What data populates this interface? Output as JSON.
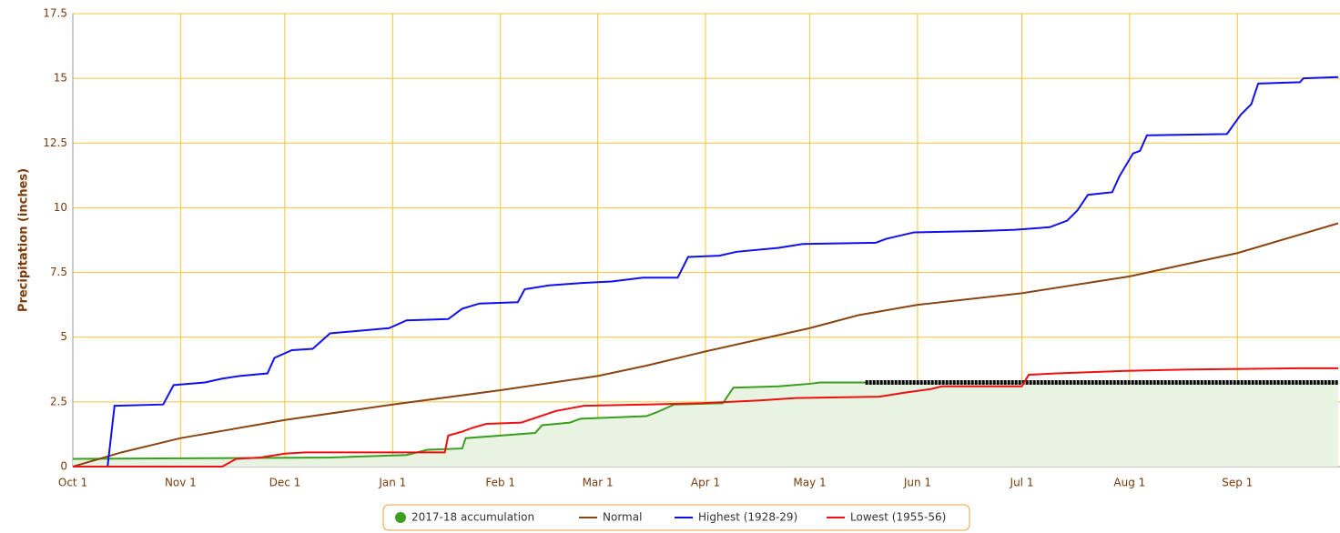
{
  "chart_data": {
    "type": "line",
    "ylabel": "Precipitation (inches)",
    "xlim": [
      "Oct 1",
      "Sep 30"
    ],
    "xticks": [
      "Oct 1",
      "Nov 1",
      "Dec 1",
      "Jan 1",
      "Feb 1",
      "Mar 1",
      "Apr 1",
      "May 1",
      "Jun 1",
      "Jul 1",
      "Aug 1",
      "Sep 1"
    ],
    "ylim": [
      0,
      17.5
    ],
    "yticks": [
      0,
      2.5,
      5,
      7.5,
      10,
      12.5,
      15,
      17.5
    ],
    "grid": true,
    "legend": "bottom",
    "series": [
      {
        "name": "2017-18 accumulation",
        "color": "#3a9e1e",
        "fill": "#e8f3e2",
        "x": [
          "Oct 1",
          "Dec 14",
          "Jan 5",
          "Jan 11",
          "Jan 21",
          "Jan 22",
          "Feb 11",
          "Feb 13",
          "Feb 21",
          "Feb 24",
          "Mar 15",
          "Mar 18",
          "Mar 23",
          "Apr 6",
          "Apr 9",
          "Apr 22",
          "May 1",
          "May 4",
          "May 17",
          "Sep 30"
        ],
        "values": [
          0.3,
          0.35,
          0.45,
          0.65,
          0.7,
          1.1,
          1.3,
          1.6,
          1.7,
          1.85,
          1.95,
          2.1,
          2.4,
          2.45,
          3.05,
          3.1,
          3.2,
          3.25,
          3.25,
          3.25
        ]
      },
      {
        "name": "Normal",
        "color": "#8b4513",
        "x": [
          "Oct 1",
          "Oct 15",
          "Nov 1",
          "Dec 1",
          "Jan 1",
          "Feb 1",
          "Mar 1",
          "Mar 15",
          "Apr 1",
          "May 1",
          "May 15",
          "Jun 1",
          "Jul 1",
          "Aug 1",
          "Sep 1",
          "Sep 30"
        ],
        "values": [
          0,
          0.55,
          1.1,
          1.8,
          2.4,
          2.95,
          3.5,
          3.9,
          4.45,
          5.35,
          5.85,
          6.25,
          6.7,
          7.35,
          8.25,
          9.4
        ]
      },
      {
        "name": "Highest (1928-29)",
        "color": "#1010ee",
        "x": [
          "Oct 1",
          "Oct 11",
          "Oct 13",
          "Oct 27",
          "Oct 30",
          "Nov 8",
          "Nov 13",
          "Nov 18",
          "Nov 26",
          "Nov 28",
          "Dec 3",
          "Dec 9",
          "Dec 14",
          "Dec 31",
          "Jan 5",
          "Jan 17",
          "Jan 21",
          "Jan 26",
          "Feb 6",
          "Feb 8",
          "Feb 15",
          "Feb 25",
          "Mar 5",
          "Mar 14",
          "Mar 24",
          "Mar 27",
          "Apr 5",
          "Apr 10",
          "Apr 22",
          "Apr 29",
          "May 20",
          "May 23",
          "May 31",
          "Jun 19",
          "Jun 29",
          "Jul 9",
          "Jul 14",
          "Jul 17",
          "Jul 20",
          "Jul 27",
          "Jul 29",
          "Aug 2",
          "Aug 4",
          "Aug 6",
          "Aug 29",
          "Sep 2",
          "Sep 5",
          "Sep 7",
          "Sep 19",
          "Sep 20",
          "Sep 30"
        ],
        "values": [
          0,
          0,
          2.35,
          2.4,
          3.15,
          3.25,
          3.4,
          3.5,
          3.6,
          4.2,
          4.5,
          4.55,
          5.15,
          5.35,
          5.65,
          5.7,
          6.1,
          6.3,
          6.35,
          6.85,
          7.0,
          7.1,
          7.15,
          7.3,
          7.3,
          8.1,
          8.15,
          8.3,
          8.45,
          8.6,
          8.65,
          8.8,
          9.05,
          9.1,
          9.15,
          9.25,
          9.5,
          9.9,
          10.5,
          10.6,
          11.2,
          12.1,
          12.2,
          12.8,
          12.85,
          13.6,
          14.0,
          14.8,
          14.85,
          15.0,
          15.05
        ]
      },
      {
        "name": "Lowest (1955-56)",
        "color": "#ee1010",
        "x": [
          "Oct 1",
          "Nov 13",
          "Nov 17",
          "Nov 24",
          "Dec 1",
          "Dec 7",
          "Jan 16",
          "Jan 17",
          "Jan 21",
          "Jan 24",
          "Jan 28",
          "Feb 7",
          "Feb 17",
          "Feb 25",
          "Mar 15",
          "Mar 31",
          "Apr 16",
          "Apr 27",
          "May 21",
          "May 28",
          "Jun 5",
          "Jun 8",
          "Jul 1",
          "Jul 3",
          "Jul 11",
          "Jul 31",
          "Aug 18",
          "Sep 19",
          "Sep 30"
        ],
        "values": [
          0,
          0,
          0.3,
          0.35,
          0.5,
          0.55,
          0.55,
          1.2,
          1.35,
          1.5,
          1.65,
          1.7,
          2.15,
          2.35,
          2.4,
          2.45,
          2.55,
          2.65,
          2.7,
          2.85,
          3.0,
          3.1,
          3.1,
          3.55,
          3.6,
          3.7,
          3.75,
          3.8,
          3.8
        ]
      }
    ]
  }
}
